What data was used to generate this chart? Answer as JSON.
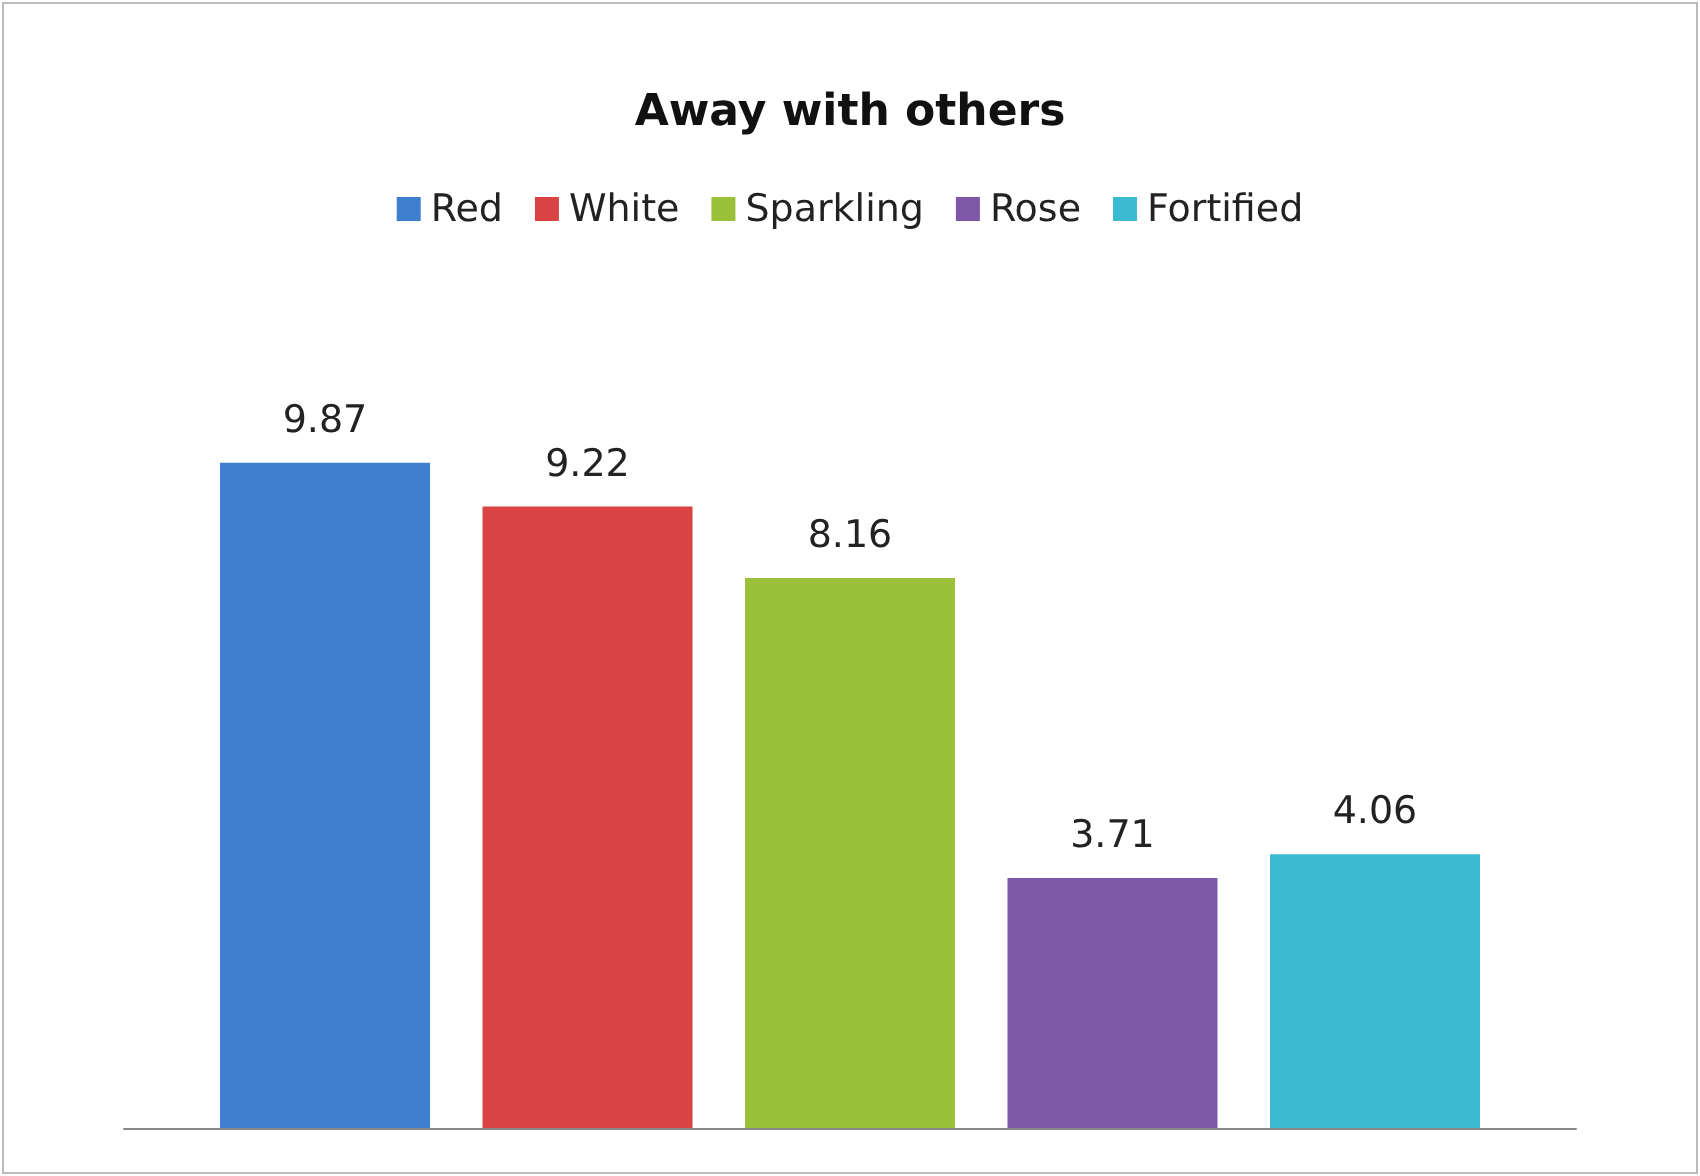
{
  "chart_data": {
    "type": "bar",
    "title": "Away with others",
    "categories": [
      null
    ],
    "series": [
      {
        "name": "Red",
        "color": "#3f7fd0",
        "values": [
          9.87
        ]
      },
      {
        "name": "White",
        "color": "#d94343",
        "values": [
          9.22
        ]
      },
      {
        "name": "Sparkling",
        "color": "#9bc13b",
        "values": [
          8.16
        ]
      },
      {
        "name": "Rose",
        "color": "#7e57a9",
        "values": [
          3.71
        ]
      },
      {
        "name": "Fortified",
        "color": "#3bbad2",
        "values": [
          4.06
        ]
      }
    ],
    "data_labels": true,
    "legend": "top"
  }
}
